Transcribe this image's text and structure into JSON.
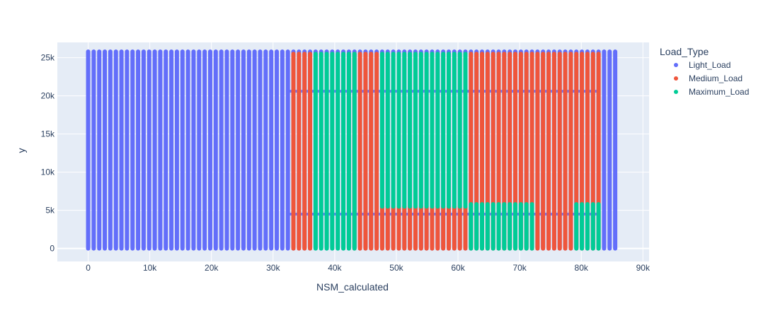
{
  "chart_data": {
    "type": "scatter",
    "xlabel": "NSM_calculated",
    "ylabel": "y",
    "xlim": [
      -5000,
      91000
    ],
    "ylim": [
      -1700,
      27000
    ],
    "x_ticks": [
      0,
      10000,
      20000,
      30000,
      40000,
      50000,
      60000,
      70000,
      80000,
      90000
    ],
    "x_tick_labels": [
      "0",
      "10k",
      "20k",
      "30k",
      "40k",
      "50k",
      "60k",
      "70k",
      "80k",
      "90k"
    ],
    "y_ticks": [
      0,
      5000,
      10000,
      15000,
      20000,
      25000
    ],
    "y_tick_labels": [
      "0",
      "5k",
      "10k",
      "15k",
      "20k",
      "25k"
    ],
    "grid": true,
    "legend": {
      "title": "Load_Type",
      "placement": "right"
    },
    "column_spacing": 900,
    "series": [
      {
        "name": "Light_Load",
        "color": "#636efa",
        "columns": [
          {
            "x_start": 0,
            "x_end": 32400,
            "y_min": 0,
            "y_max": 25800
          },
          {
            "x_start": 33300,
            "x_end": 82800,
            "y_min": 0,
            "y_max": 25800
          },
          {
            "x_start": 83700,
            "x_end": 85500,
            "y_min": 0,
            "y_max": 25800
          }
        ],
        "bands": [
          {
            "x_start": 32400,
            "x_end": 82800,
            "y": 20600
          },
          {
            "x_start": 32400,
            "x_end": 82800,
            "y": 4500
          }
        ]
      },
      {
        "name": "Medium_Load",
        "color": "#ef553b",
        "columns": [
          {
            "x_start": 33300,
            "x_end": 36000,
            "y_min": 0,
            "y_max": 25500
          },
          {
            "x_start": 43200,
            "x_end": 46800,
            "y_min": 0,
            "y_max": 25500
          },
          {
            "x_start": 47700,
            "x_end": 61200,
            "y_min": 0,
            "y_max": 5500
          },
          {
            "x_start": 62100,
            "x_end": 82800,
            "y_min": 0,
            "y_max": 25500
          }
        ]
      },
      {
        "name": "Maximum_Load",
        "color": "#00cc96",
        "columns": [
          {
            "x_start": 36900,
            "x_end": 43200,
            "y_min": 0,
            "y_max": 25500
          },
          {
            "x_start": 47700,
            "x_end": 61200,
            "y_min": 5500,
            "y_max": 25500
          },
          {
            "x_start": 62100,
            "x_end": 72000,
            "y_min": 0,
            "y_max": 5800
          },
          {
            "x_start": 79200,
            "x_end": 82800,
            "y_min": 0,
            "y_max": 5800
          }
        ]
      }
    ]
  }
}
